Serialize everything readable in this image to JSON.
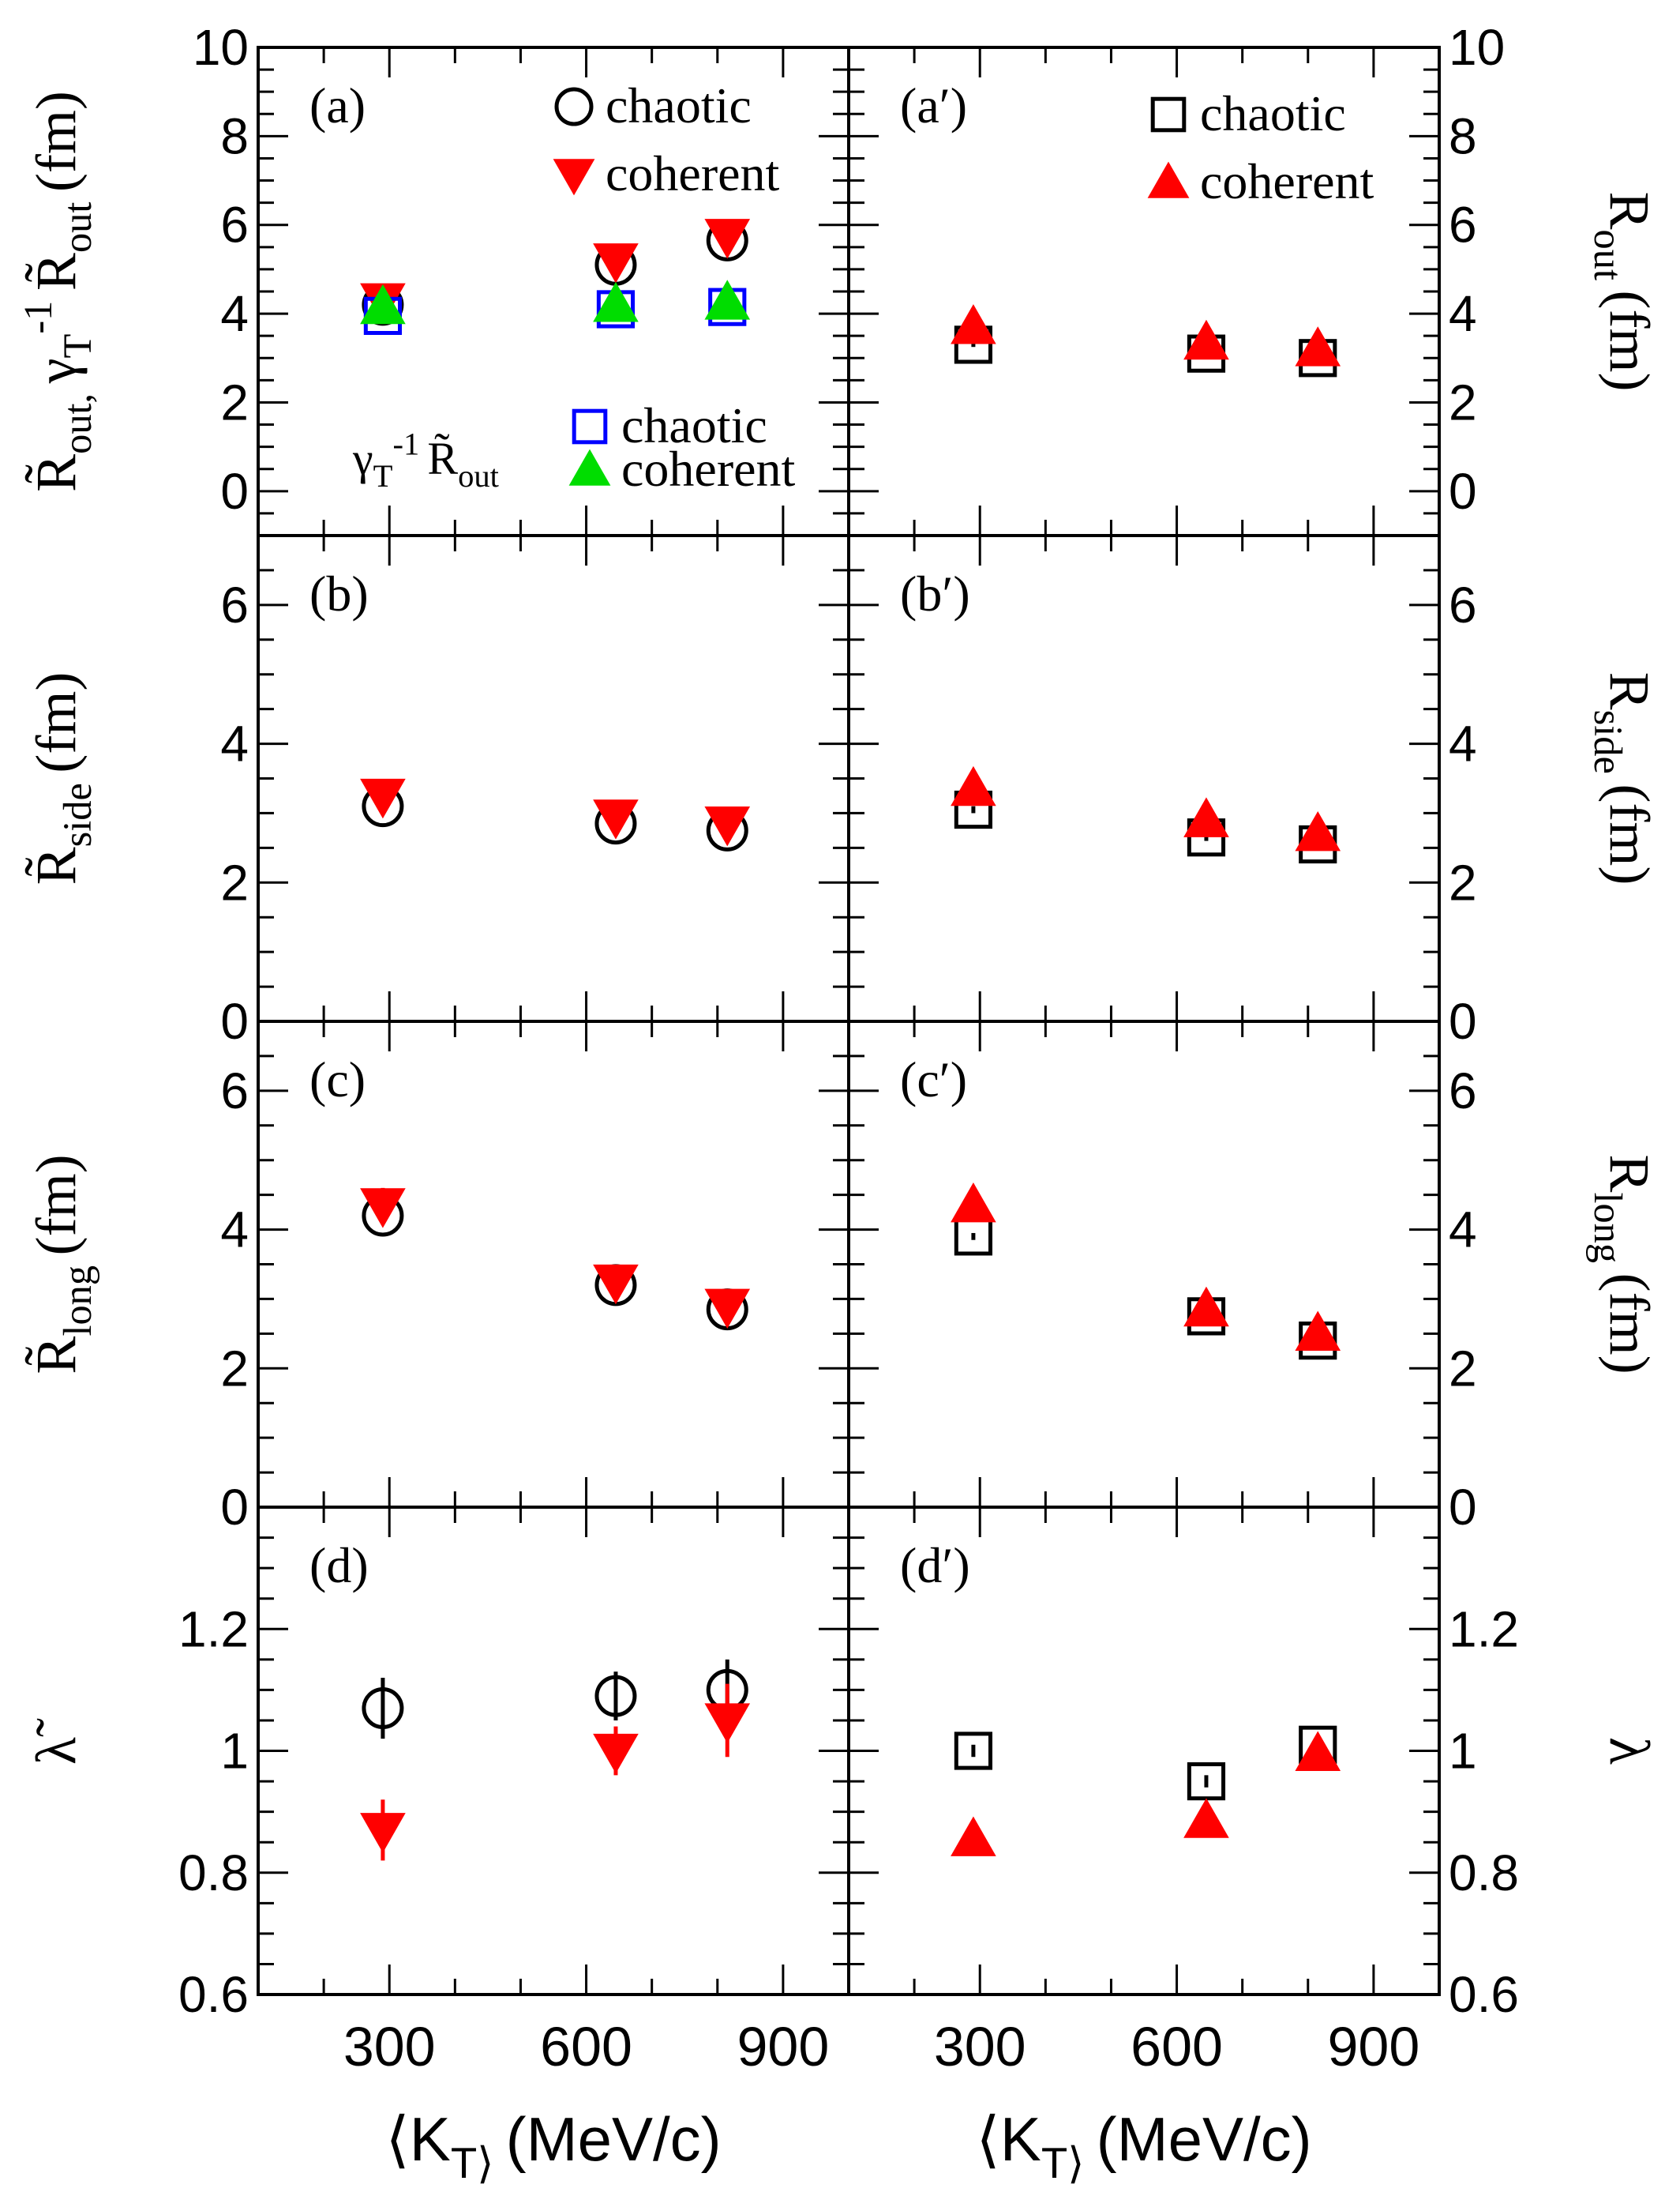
{
  "colors": {
    "chaotic": "#000000",
    "coherent": "#ff0000",
    "chaotic_scaled": "#0000ff",
    "coherent_scaled": "#00dd00"
  },
  "x_axis": {
    "label_left": "⟨K_T⟩ (MeV/c)",
    "label_right": "⟨K_T⟩ (MeV/c)",
    "xlim": [
      100,
      1000
    ],
    "ticks": [
      300,
      600,
      900
    ]
  },
  "chart_data": [
    {
      "type": "scatter",
      "id": "a",
      "panel_label": "(a)",
      "ylabel": "R̃_out, γ_T^-1 R̃_out (fm)",
      "ylim": [
        -1,
        10
      ],
      "yticks": [
        0,
        2,
        4,
        6,
        8,
        10
      ],
      "legend": [
        {
          "marker": "circle-open",
          "color": "#000000",
          "label": "chaotic"
        },
        {
          "marker": "triangle-down",
          "color": "#ff0000",
          "label": "coherent"
        }
      ],
      "legend2_title": "γ_T^-1 R̃_out",
      "legend2": [
        {
          "marker": "square-open",
          "color": "#0000ff",
          "label": "chaotic"
        },
        {
          "marker": "triangle-up",
          "color": "#00dd00",
          "label": "coherent"
        }
      ],
      "series": [
        {
          "name": "chaotic",
          "marker": "circle-open",
          "color": "#000000",
          "x": [
            290,
            645,
            815
          ],
          "y": [
            4.2,
            5.1,
            5.65
          ],
          "err": [
            0.1,
            0.12,
            0.12
          ]
        },
        {
          "name": "coherent",
          "marker": "triangle-down",
          "color": "#ff0000",
          "x": [
            290,
            645,
            815
          ],
          "y": [
            4.3,
            5.2,
            5.75
          ],
          "err": [
            0.1,
            0.12,
            0.12
          ]
        },
        {
          "name": "chaotic γ_T^-1",
          "marker": "square-open",
          "color": "#0000ff",
          "x": [
            290,
            645,
            815
          ],
          "y": [
            3.95,
            4.1,
            4.15
          ],
          "err": [
            0.05,
            0.05,
            0.05
          ]
        },
        {
          "name": "coherent γ_T^-1",
          "marker": "triangle-up",
          "color": "#00dd00",
          "x": [
            290,
            645,
            815
          ],
          "y": [
            4.15,
            4.2,
            4.25
          ],
          "err": [
            0.05,
            0.05,
            0.05
          ]
        }
      ]
    },
    {
      "type": "scatter",
      "id": "a2",
      "panel_label": "(a′)",
      "ylabel": "R_out (fm)",
      "ylim": [
        -1,
        10
      ],
      "yticks": [
        0,
        2,
        4,
        6,
        8,
        10
      ],
      "legend": [
        {
          "marker": "square-open",
          "color": "#000000",
          "label": "chaotic"
        },
        {
          "marker": "triangle-up",
          "color": "#ff0000",
          "label": "coherent"
        }
      ],
      "series": [
        {
          "name": "chaotic",
          "marker": "square-open",
          "color": "#000000",
          "x": [
            290,
            645,
            815
          ],
          "y": [
            3.3,
            3.1,
            3.0
          ],
          "err": [
            0.05,
            0.05,
            0.05
          ]
        },
        {
          "name": "coherent",
          "marker": "triangle-up",
          "color": "#ff0000",
          "x": [
            290,
            645,
            815
          ],
          "y": [
            3.7,
            3.35,
            3.2
          ],
          "err": [
            0.05,
            0.05,
            0.05
          ]
        }
      ]
    },
    {
      "type": "scatter",
      "id": "b",
      "panel_label": "(b)",
      "ylabel": "R̃_side (fm)",
      "ylim": [
        0,
        7
      ],
      "yticks": [
        0,
        2,
        4,
        6
      ],
      "series": [
        {
          "name": "chaotic",
          "marker": "circle-open",
          "color": "#000000",
          "x": [
            290,
            645,
            815
          ],
          "y": [
            3.1,
            2.85,
            2.75
          ],
          "err": [
            0.05,
            0.05,
            0.05
          ]
        },
        {
          "name": "coherent",
          "marker": "triangle-down",
          "color": "#ff0000",
          "x": [
            290,
            645,
            815
          ],
          "y": [
            3.25,
            2.95,
            2.85
          ],
          "err": [
            0.05,
            0.05,
            0.05
          ]
        }
      ]
    },
    {
      "type": "scatter",
      "id": "b2",
      "panel_label": "(b′)",
      "ylabel": "R_side (fm)",
      "ylim": [
        0,
        7
      ],
      "yticks": [
        0,
        2,
        4,
        6
      ],
      "series": [
        {
          "name": "chaotic",
          "marker": "square-open",
          "color": "#000000",
          "x": [
            290,
            645,
            815
          ],
          "y": [
            3.05,
            2.65,
            2.55
          ],
          "err": [
            0.05,
            0.05,
            0.05
          ]
        },
        {
          "name": "coherent",
          "marker": "triangle-up",
          "color": "#ff0000",
          "x": [
            290,
            645,
            815
          ],
          "y": [
            3.35,
            2.9,
            2.7
          ],
          "err": [
            0.05,
            0.05,
            0.05
          ]
        }
      ]
    },
    {
      "type": "scatter",
      "id": "c",
      "panel_label": "(c)",
      "ylabel": "R̃_long (fm)",
      "ylim": [
        0,
        7
      ],
      "yticks": [
        0,
        2,
        4,
        6
      ],
      "series": [
        {
          "name": "chaotic",
          "marker": "circle-open",
          "color": "#000000",
          "x": [
            290,
            645,
            815
          ],
          "y": [
            4.2,
            3.2,
            2.85
          ],
          "err": [
            0.08,
            0.05,
            0.05
          ]
        },
        {
          "name": "coherent",
          "marker": "triangle-down",
          "color": "#ff0000",
          "x": [
            290,
            645,
            815
          ],
          "y": [
            4.35,
            3.25,
            2.9
          ],
          "err": [
            0.25,
            0.05,
            0.05
          ]
        }
      ]
    },
    {
      "type": "scatter",
      "id": "c2",
      "panel_label": "(c′)",
      "ylabel": "R_long (fm)",
      "ylim": [
        0,
        7
      ],
      "yticks": [
        0,
        2,
        4,
        6
      ],
      "series": [
        {
          "name": "chaotic",
          "marker": "square-open",
          "color": "#000000",
          "x": [
            290,
            645,
            815
          ],
          "y": [
            3.9,
            2.75,
            2.4
          ],
          "err": [
            0.05,
            0.05,
            0.05
          ]
        },
        {
          "name": "coherent",
          "marker": "triangle-up",
          "color": "#ff0000",
          "x": [
            290,
            645,
            815
          ],
          "y": [
            4.35,
            2.85,
            2.5
          ],
          "err": [
            0.05,
            0.05,
            0.05
          ]
        }
      ]
    },
    {
      "type": "scatter",
      "id": "d",
      "panel_label": "(d)",
      "ylabel": "λ̃",
      "ylim": [
        0.6,
        1.4
      ],
      "yticks": [
        0.6,
        0.8,
        1,
        1.2
      ],
      "series": [
        {
          "name": "chaotic",
          "marker": "circle-open",
          "color": "#000000",
          "x": [
            290,
            645,
            815
          ],
          "y": [
            1.07,
            1.09,
            1.1
          ],
          "err": [
            0.05,
            0.04,
            0.05
          ]
        },
        {
          "name": "coherent",
          "marker": "triangle-down",
          "color": "#ff0000",
          "x": [
            290,
            645,
            815
          ],
          "y": [
            0.87,
            1.0,
            1.05
          ],
          "err": [
            0.05,
            0.04,
            0.06
          ]
        }
      ]
    },
    {
      "type": "scatter",
      "id": "d2",
      "panel_label": "(d′)",
      "ylabel": "λ",
      "ylim": [
        0.6,
        1.4
      ],
      "yticks": [
        0.6,
        0.8,
        1,
        1.2
      ],
      "series": [
        {
          "name": "chaotic",
          "marker": "square-open",
          "color": "#000000",
          "x": [
            290,
            645,
            815
          ],
          "y": [
            1.0,
            0.95,
            1.01
          ],
          "err": [
            0.01,
            0.01,
            0.01
          ]
        },
        {
          "name": "coherent",
          "marker": "triangle-up",
          "color": "#ff0000",
          "x": [
            290,
            645,
            815
          ],
          "y": [
            0.855,
            0.885,
            0.995
          ],
          "err": [
            0.01,
            0.01,
            0.01
          ]
        }
      ]
    }
  ]
}
